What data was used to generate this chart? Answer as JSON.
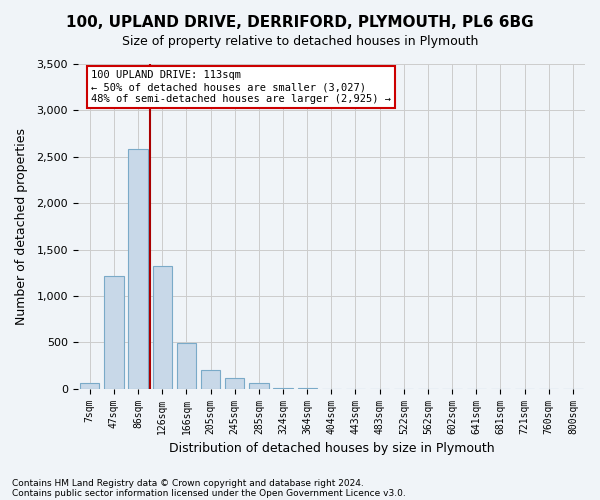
{
  "title_line1": "100, UPLAND DRIVE, DERRIFORD, PLYMOUTH, PL6 6BG",
  "title_line2": "Size of property relative to detached houses in Plymouth",
  "xlabel": "Distribution of detached houses by size in Plymouth",
  "ylabel": "Number of detached properties",
  "bin_labels": [
    "7sqm",
    "47sqm",
    "86sqm",
    "126sqm",
    "166sqm",
    "205sqm",
    "245sqm",
    "285sqm",
    "324sqm",
    "364sqm",
    "404sqm",
    "443sqm",
    "483sqm",
    "522sqm",
    "562sqm",
    "602sqm",
    "641sqm",
    "681sqm",
    "721sqm",
    "760sqm",
    "800sqm"
  ],
  "bar_values": [
    60,
    1220,
    2580,
    1320,
    490,
    200,
    110,
    60,
    10,
    5,
    0,
    0,
    0,
    0,
    0,
    0,
    0,
    0,
    0,
    0,
    0
  ],
  "bar_color": "#c8d8e8",
  "bar_edgecolor": "#7aaac8",
  "vline_color": "#aa0000",
  "annotation_text": "100 UPLAND DRIVE: 113sqm\n← 50% of detached houses are smaller (3,027)\n48% of semi-detached houses are larger (2,925) →",
  "annotation_box_edgecolor": "#cc0000",
  "annotation_box_facecolor": "#ffffff",
  "ylim": [
    0,
    3500
  ],
  "yticks": [
    0,
    500,
    1000,
    1500,
    2000,
    2500,
    3000,
    3500
  ],
  "grid_color": "#cccccc",
  "background_color": "#f0f4f8",
  "axes_background": "#f0f4f8",
  "footnote1": "Contains HM Land Registry data © Crown copyright and database right 2024.",
  "footnote2": "Contains public sector information licensed under the Open Government Licence v3.0."
}
